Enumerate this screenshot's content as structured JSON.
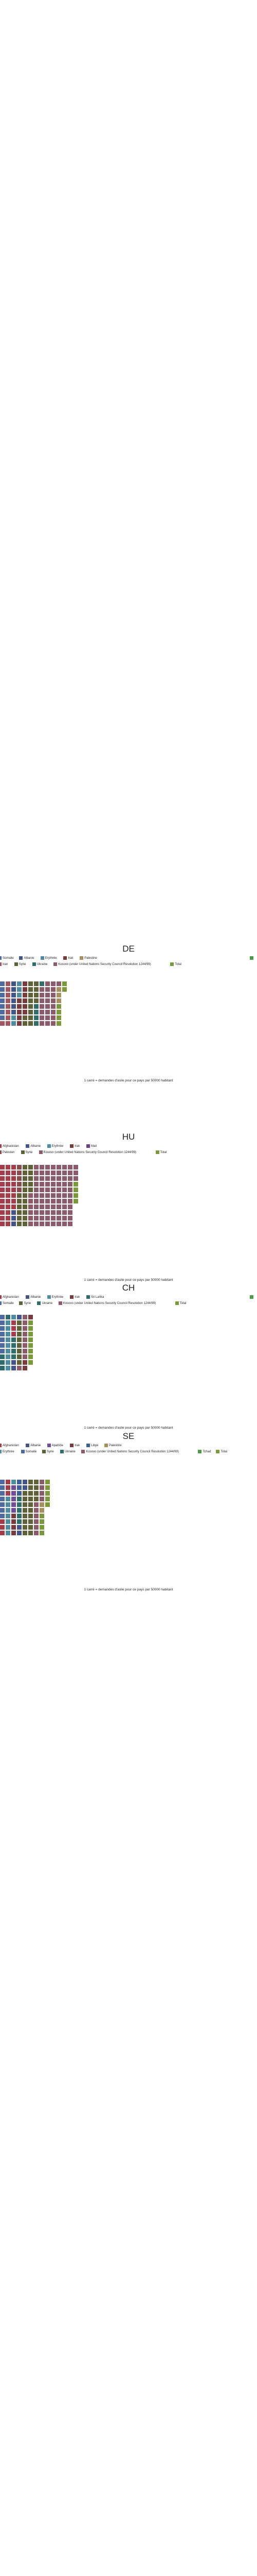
{
  "chart_data": [
    {
      "type": "waffle",
      "title": "DE",
      "caption": "1 carré = demandes d'asile pour ce pays par 50000 habitant",
      "columns": 12,
      "colors": {
        "Somalie": "#4F6AA0",
        "Iran": "#A45660",
        "Irak": "#7A3B3E",
        "Albanie": "#42548A",
        "Erythrée": "#4E8CA4",
        "Syrie": "#5F6236",
        "Ukraine": "#2E6E6A",
        "Kosovo": "#8C5A68",
        "Palestine": "#A88F5E",
        "Tchad": "#4A9A4A",
        "Total": "#7A9A3A"
      },
      "legend_rows": [
        [
          {
            "label": "Somalie",
            "key": "Somalie"
          },
          {
            "label": "Albanie",
            "key": "Albanie"
          },
          {
            "label": "Erythrée",
            "key": "Erythrée"
          },
          {
            "label": "Irak",
            "key": "Irak"
          },
          {
            "label": "Palestine",
            "key": "Palestine"
          },
          {
            "label": "",
            "key": "Tchad"
          }
        ],
        [
          {
            "label": "Iran",
            "key": "Iran"
          },
          {
            "label": "Syrie",
            "key": "Syrie"
          },
          {
            "label": "Ukraine",
            "key": "Ukraine"
          },
          {
            "label": "Kosovo (under United Nations Security Council Resolution 1244/99)",
            "key": "Kosovo"
          },
          {
            "label": "Total",
            "key": "Total"
          }
        ]
      ],
      "series": [
        {
          "name": "Somalie",
          "value": 7
        },
        {
          "name": "Iran",
          "value": 9
        },
        {
          "name": "Albanie",
          "value": 6
        },
        {
          "name": "Erythrée",
          "value": 5
        },
        {
          "name": "Irak",
          "value": 11
        },
        {
          "name": "Syrie",
          "value": 14
        },
        {
          "name": "Ukraine",
          "value": 5
        },
        {
          "name": "Kosovo",
          "value": 24
        },
        {
          "name": "Palestine",
          "value": 3
        },
        {
          "name": "Total",
          "value": 6
        }
      ]
    },
    {
      "type": "waffle",
      "title": "HU",
      "caption": "1 carré = demandes d'asile pour ce pays par 50000 habitant",
      "columns": 14,
      "colors": {
        "Afghanistan": "#A43C4A",
        "Albanie": "#42548A",
        "Erythrée": "#4E8CA4",
        "Irak": "#7A3B3E",
        "Mali": "#6A3E8A",
        "Pakistan": "#8A4A4E",
        "Syrie": "#5F6236",
        "Ukraine": "#2E6E6A",
        "Kosovo": "#8C5A68",
        "Total": "#7A9A3A"
      },
      "legend_rows": [
        [
          {
            "label": "Afghanistan",
            "key": "Afghanistan"
          },
          {
            "label": "Albanie",
            "key": "Albanie"
          },
          {
            "label": "Erythrée",
            "key": "Erythrée"
          },
          {
            "label": "Irak",
            "key": "Irak"
          },
          {
            "label": "Mali",
            "key": "Mali"
          }
        ],
        [
          {
            "label": "Pakistan",
            "key": "Pakistan"
          },
          {
            "label": "Syrie",
            "key": "Syrie"
          },
          {
            "label": "Kosovo (under United Nations Security Council Resolution 1244/99)",
            "key": "Kosovo"
          },
          {
            "label": "Total",
            "key": "Total"
          }
        ]
      ],
      "series": [
        {
          "name": "Afghanistan",
          "value": 30
        },
        {
          "name": "Albanie",
          "value": 3
        },
        {
          "name": "Pakistan",
          "value": 5
        },
        {
          "name": "Syrie",
          "value": 22
        },
        {
          "name": "Kosovo",
          "value": 86
        },
        {
          "name": "Total",
          "value": 4
        }
      ]
    },
    {
      "type": "waffle",
      "title": "CH",
      "caption": "1 carré = demandes d'asile pour ce pays par 50000 habitant",
      "columns": 6,
      "colors": {
        "Afghanistan": "#A43C4A",
        "Albanie": "#42548A",
        "Erythrée": "#4E8CA4",
        "Irak": "#7A3B3E",
        "Sri Lanka": "#2F6A6E",
        "Somalie": "#4F6AA0",
        "Syrie": "#5F6236",
        "Ukraine": "#2E6E6A",
        "Kosovo": "#8C5A68",
        "Tchad": "#4A9A4A",
        "Total": "#7A9A3A"
      },
      "legend_rows": [
        [
          {
            "label": "Afghanistan",
            "key": "Afghanistan"
          },
          {
            "label": "Albanie",
            "key": "Albanie"
          },
          {
            "label": "Erythrée",
            "key": "Erythrée"
          },
          {
            "label": "Irak",
            "key": "Irak"
          },
          {
            "label": "Sri Lanka",
            "key": "Sri Lanka"
          },
          {
            "label": "",
            "key": "Tchad"
          }
        ],
        [
          {
            "label": "Somalie",
            "key": "Somalie"
          },
          {
            "label": "Syrie",
            "key": "Syrie"
          },
          {
            "label": "Ukraine",
            "key": "Ukraine"
          },
          {
            "label": "Kosovo (under United Nations Security Council Resolution 1244/99)",
            "key": "Kosovo"
          },
          {
            "label": "Total",
            "key": "Total"
          }
        ]
      ],
      "series": [
        {
          "name": "Somalie",
          "value": 7
        },
        {
          "name": "Sri Lanka",
          "value": 4
        },
        {
          "name": "Erythrée",
          "value": 10
        },
        {
          "name": "Afghanistan",
          "value": 3
        },
        {
          "name": "Ukraine",
          "value": 4
        },
        {
          "name": "Albanie",
          "value": 3
        },
        {
          "name": "Syrie",
          "value": 8
        },
        {
          "name": "Kosovo",
          "value": 9
        },
        {
          "name": "Irak",
          "value": 3
        },
        {
          "name": "Total",
          "value": 8
        }
      ]
    },
    {
      "type": "waffle",
      "title": "SE",
      "caption": "1 carré = demandes d'asile pour ce pays par 50000 habitant",
      "columns": 9,
      "colors": {
        "Afghanistan": "#A43C4A",
        "Albanie": "#42548A",
        "Apatride": "#6E4E9A",
        "Irak": "#7A3B3E",
        "Libye": "#3E5E9A",
        "Somalie": "#4F6AA0",
        "Erythrée": "#4E8CA4",
        "Syrie": "#5F6236",
        "Ukraine": "#2E6E6A",
        "Kosovo": "#8C5A68",
        "Tchad": "#4A9A4A",
        "Palestine": "#A88F5E",
        "Total": "#7A9A3A"
      },
      "legend_rows": [
        [
          {
            "label": "Afghanistan",
            "key": "Afghanistan"
          },
          {
            "label": "Albanie",
            "key": "Albanie"
          },
          {
            "label": "Apatride",
            "key": "Apatride"
          },
          {
            "label": "Irak",
            "key": "Irak"
          },
          {
            "label": "Libye",
            "key": "Libye"
          },
          {
            "label": "Palestine",
            "key": "Palestine"
          }
        ],
        [
          {
            "label": "Erythrée",
            "key": "Erythrée"
          },
          {
            "label": "Somalie",
            "key": "Somalie"
          },
          {
            "label": "Syrie",
            "key": "Syrie"
          },
          {
            "label": "Ukraine",
            "key": "Ukraine"
          },
          {
            "label": "Kosovo (under United Nations Security Council Resolution 1244/99)",
            "key": "Kosovo"
          },
          {
            "label": "Tchad",
            "key": "Tchad"
          },
          {
            "label": "Total",
            "key": "Total"
          }
        ]
      ],
      "series": [
        {
          "name": "Somalie",
          "value": 7
        },
        {
          "name": "Afghanistan",
          "value": 6
        },
        {
          "name": "Erythrée",
          "value": 8
        },
        {
          "name": "Apatride",
          "value": 5
        },
        {
          "name": "Irak",
          "value": 4
        },
        {
          "name": "Libye",
          "value": 3
        },
        {
          "name": "Ukraine",
          "value": 5
        },
        {
          "name": "Albanie",
          "value": 4
        },
        {
          "name": "Syrie",
          "value": 22
        },
        {
          "name": "Kosovo",
          "value": 10
        },
        {
          "name": "Palestine",
          "value": 2
        },
        {
          "name": "Total",
          "value": 9
        }
      ]
    }
  ]
}
